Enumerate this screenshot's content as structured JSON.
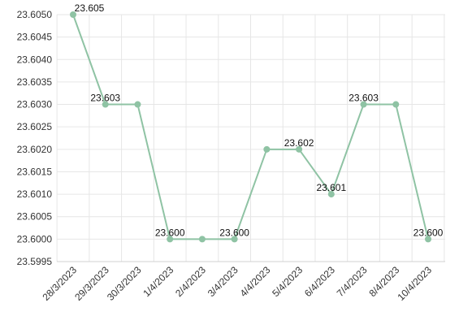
{
  "chart_data": {
    "type": "line",
    "categories": [
      "28/3/2023",
      "29/3/2023",
      "30/3/2023",
      "1/4/2023",
      "2/4/2023",
      "3/4/2023",
      "4/4/2023",
      "5/4/2023",
      "6/4/2023",
      "7/4/2023",
      "8/4/2023",
      "10/4/2023"
    ],
    "series": [
      {
        "values": [
          23.605,
          23.603,
          23.603,
          23.6,
          23.6,
          23.6,
          23.602,
          23.602,
          23.601,
          23.603,
          23.603,
          23.6
        ]
      }
    ],
    "data_labels": [
      "23.605",
      "23.603",
      "",
      "23.600",
      "",
      "23.600",
      "",
      "23.602",
      "23.601",
      "23.603",
      "",
      "23.600"
    ],
    "y_ticks": [
      "23.6050",
      "23.6045",
      "23.6040",
      "23.6035",
      "23.6030",
      "23.6025",
      "23.6020",
      "23.6015",
      "23.6010",
      "23.6005",
      "23.6000",
      "23.5995"
    ],
    "ylim": [
      23.5995,
      23.605
    ],
    "title": "",
    "xlabel": "",
    "ylabel": "",
    "grid": true,
    "legend": "none",
    "colors": {
      "line": "#8fc3a4",
      "marker": "#8fc3a4",
      "grid": "#e6e6e6"
    }
  }
}
